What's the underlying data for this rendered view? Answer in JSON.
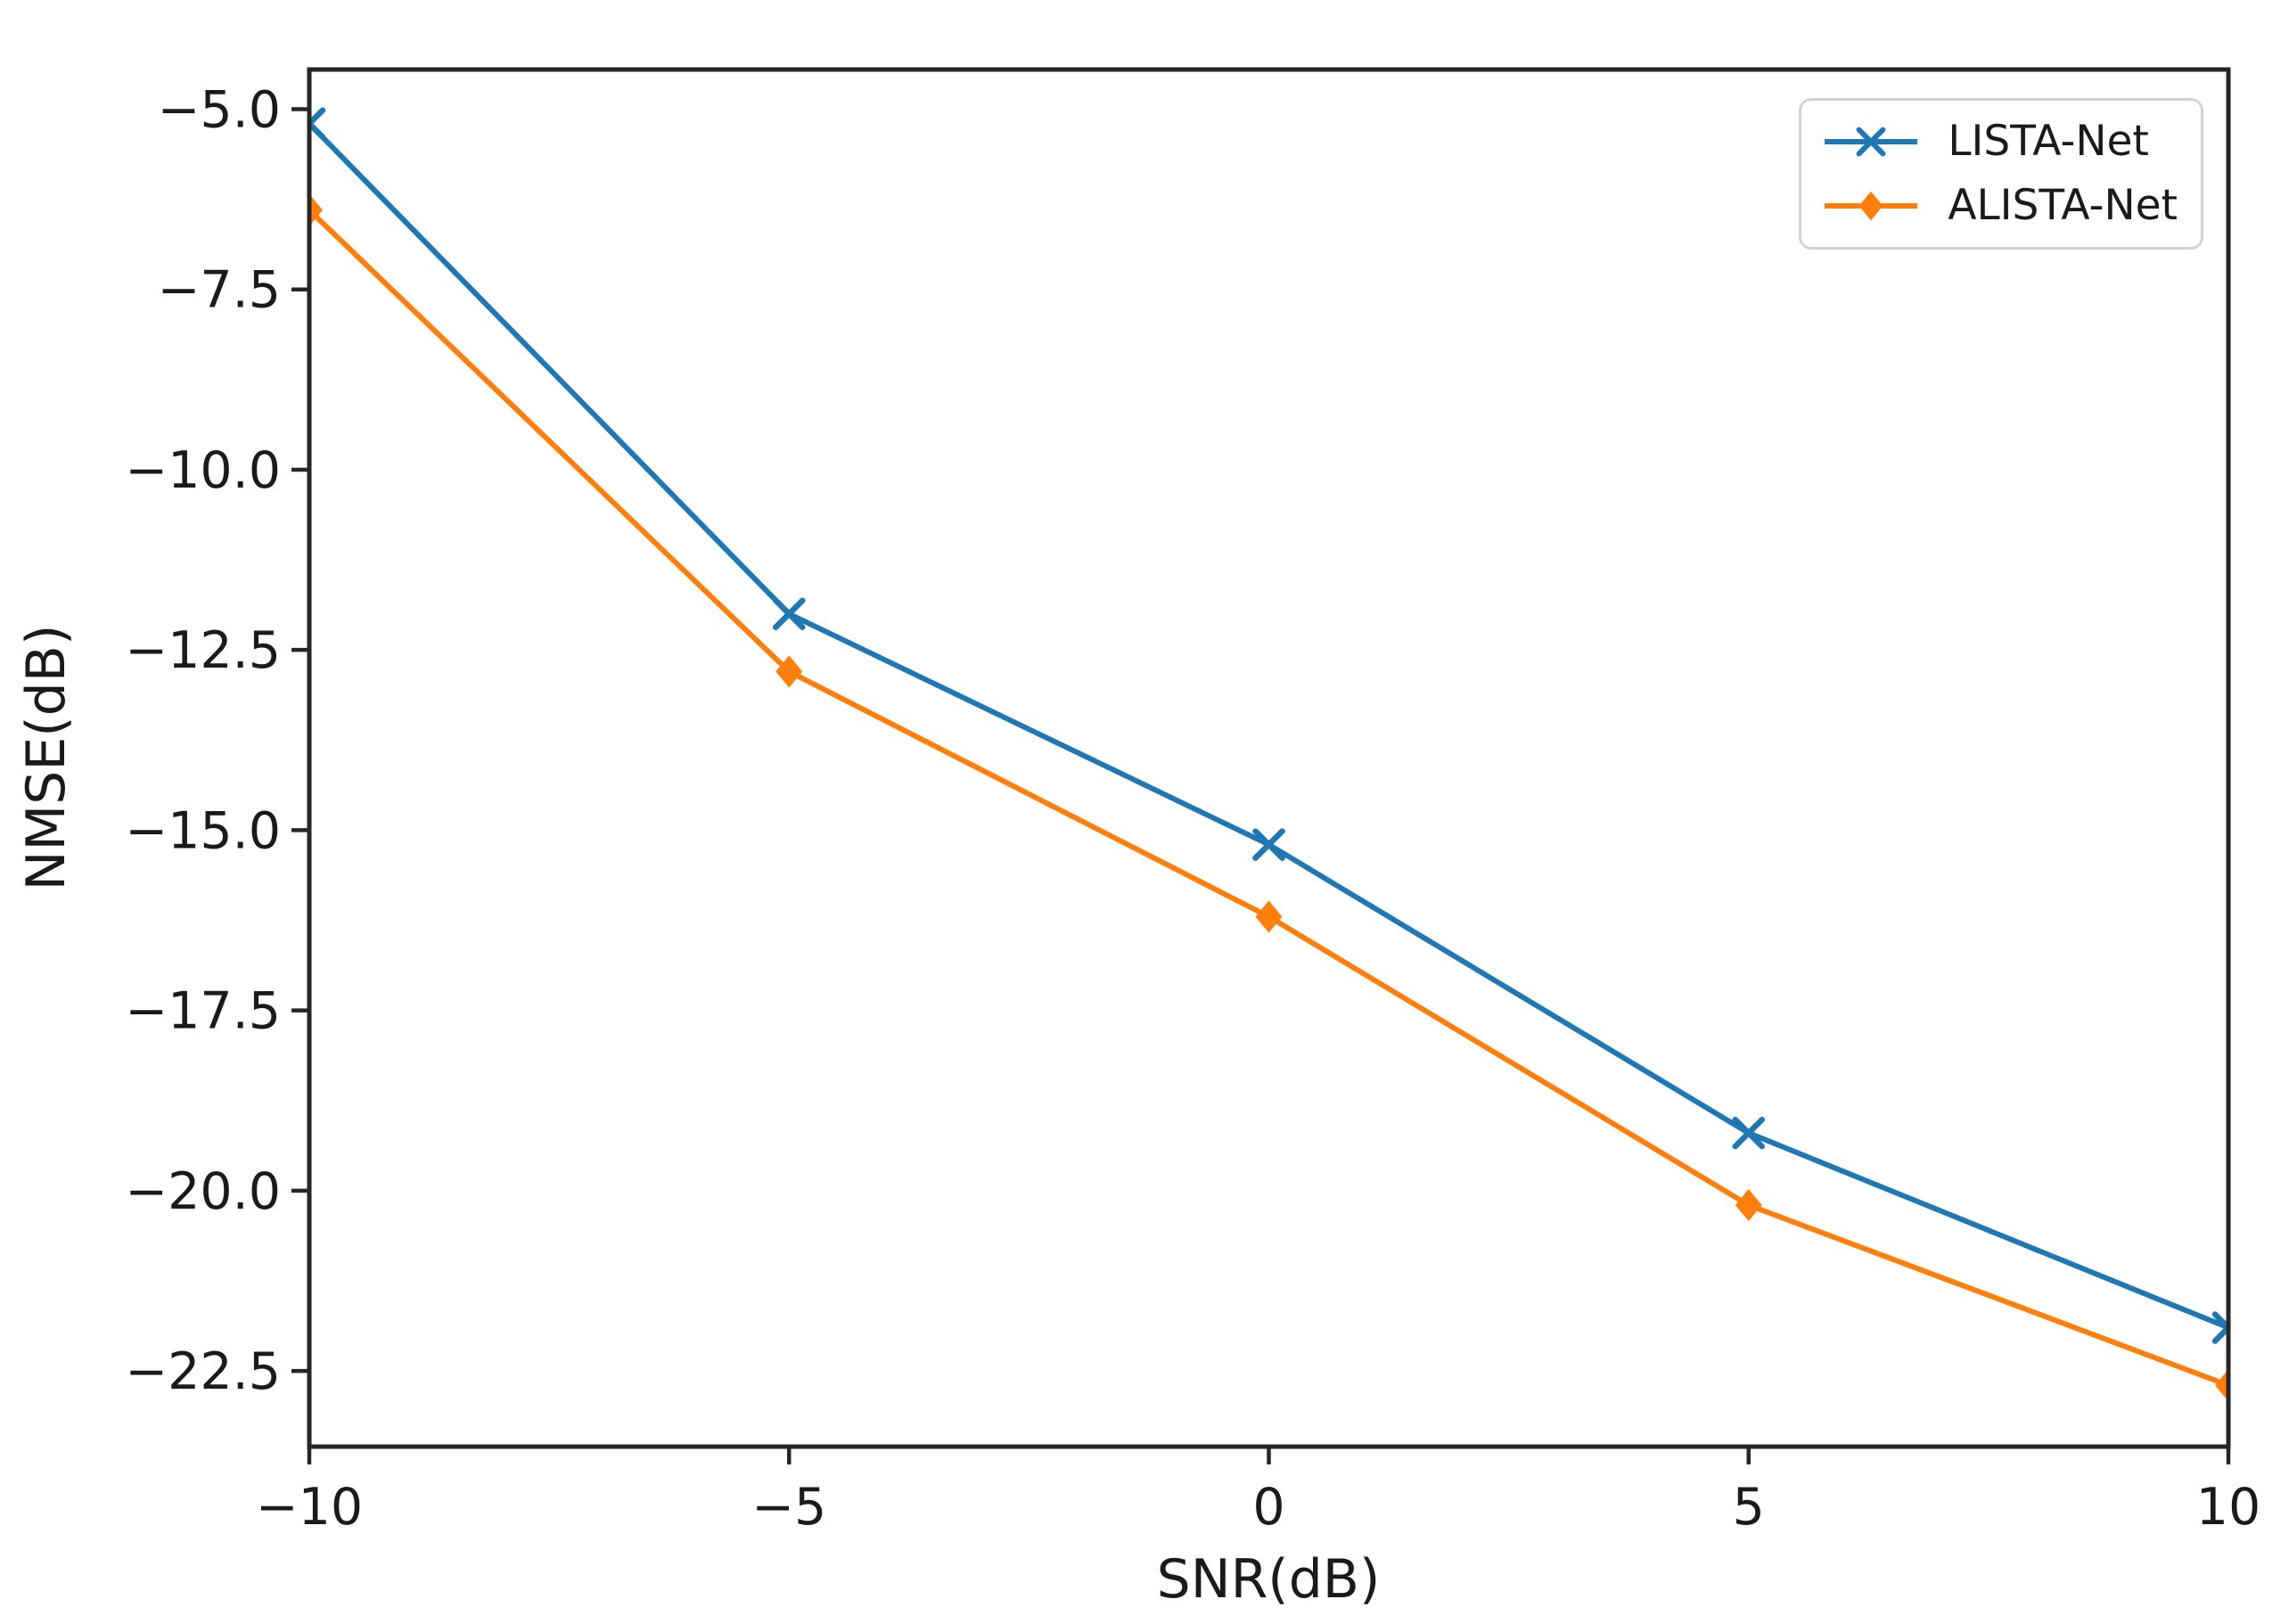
{
  "chart_data": {
    "type": "line",
    "title": "",
    "xlabel": "SNR(dB)",
    "ylabel": "NMSE(dB)",
    "x": [
      -10,
      -5,
      0,
      5,
      10
    ],
    "series": [
      {
        "name": "LISTA-Net",
        "color": "#1f77b4",
        "marker": "x",
        "values": [
          -5.2,
          -12.0,
          -15.2,
          -19.2,
          -21.9
        ]
      },
      {
        "name": "ALISTA-Net",
        "color": "#ff7f0e",
        "marker": "D",
        "values": [
          -6.4,
          -12.8,
          -16.2,
          -20.2,
          -22.7
        ]
      }
    ],
    "xlim": [
      -10,
      10
    ],
    "ylim": [
      -23.55,
      -4.45
    ],
    "xticks": [
      -10,
      -5,
      0,
      5,
      10
    ],
    "yticks": [
      -5.0,
      -7.5,
      -10.0,
      -12.5,
      -15.0,
      -17.5,
      -20.0,
      -22.5
    ],
    "grid": false,
    "legend": {
      "position": "upper right",
      "entries": [
        "LISTA-Net",
        "ALISTA-Net"
      ]
    },
    "axis_color": "#262626",
    "text_color": "#1a1a1a",
    "background": "#ffffff"
  }
}
